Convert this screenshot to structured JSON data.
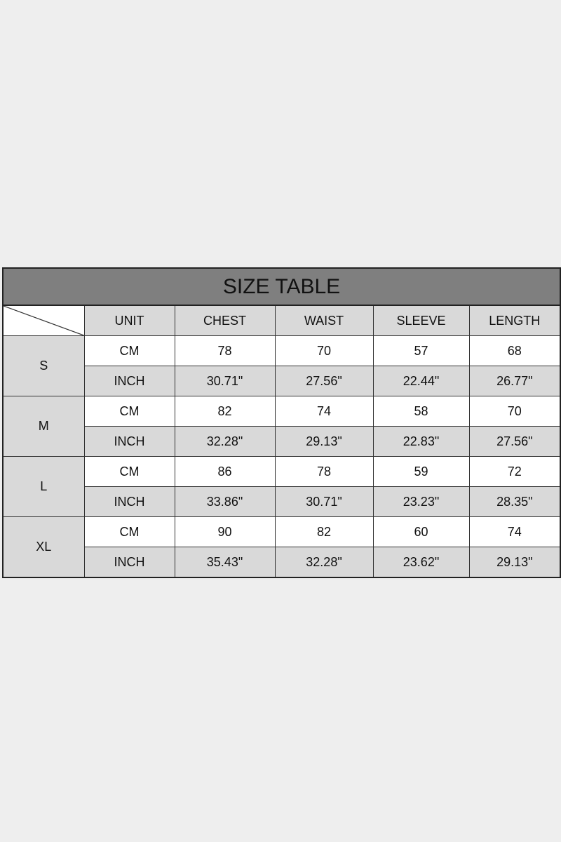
{
  "title": "SIZE TABLE",
  "columns": [
    "UNIT",
    "CHEST",
    "WAIST",
    "SLEEVE",
    "LENGTH"
  ],
  "sizes": [
    {
      "size": "S",
      "rows": [
        {
          "unit": "CM",
          "values": [
            "78",
            "70",
            "57",
            "68"
          ]
        },
        {
          "unit": "INCH",
          "values": [
            "30.71\"",
            "27.56\"",
            "22.44\"",
            "26.77\""
          ]
        }
      ]
    },
    {
      "size": "M",
      "rows": [
        {
          "unit": "CM",
          "values": [
            "82",
            "74",
            "58",
            "70"
          ]
        },
        {
          "unit": "INCH",
          "values": [
            "32.28\"",
            "29.13\"",
            "22.83\"",
            "27.56\""
          ]
        }
      ]
    },
    {
      "size": "L",
      "rows": [
        {
          "unit": "CM",
          "values": [
            "86",
            "78",
            "59",
            "72"
          ]
        },
        {
          "unit": "INCH",
          "values": [
            "33.86\"",
            "30.71\"",
            "23.23\"",
            "28.35\""
          ]
        }
      ]
    },
    {
      "size": "XL",
      "rows": [
        {
          "unit": "CM",
          "values": [
            "90",
            "82",
            "60",
            "74"
          ]
        },
        {
          "unit": "INCH",
          "values": [
            "35.43\"",
            "32.28\"",
            "23.62\"",
            "29.13\""
          ]
        }
      ]
    }
  ]
}
